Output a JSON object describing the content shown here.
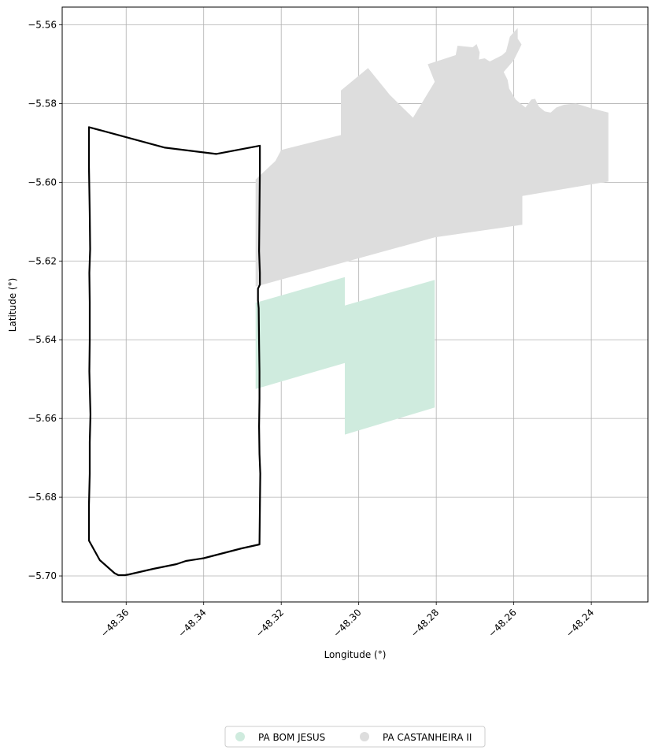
{
  "chart_data": {
    "type": "map",
    "xlabel": "Longitude (°)",
    "ylabel": "Latitude (°)",
    "xlim": [
      -48.3765,
      -48.2254
    ],
    "ylim": [
      -5.7066,
      -5.5555
    ],
    "xticks": [
      -48.36,
      -48.34,
      -48.32,
      -48.3,
      -48.28,
      -48.26,
      -48.24
    ],
    "yticks": [
      -5.56,
      -5.58,
      -5.6,
      -5.62,
      -5.64,
      -5.66,
      -5.68,
      -5.7
    ],
    "xtick_labels": [
      "−48.36",
      "−48.34",
      "−48.32",
      "−48.30",
      "−48.28",
      "−48.26",
      "−48.24"
    ],
    "ytick_labels": [
      "−5.56",
      "−5.58",
      "−5.60",
      "−5.62",
      "−5.64",
      "−5.66",
      "−5.68",
      "−5.70"
    ],
    "grid": true,
    "legend_position": "bottom-center",
    "series": [
      {
        "name": "PA BOM JESUS",
        "kind": "filled-polygon",
        "color": "#cfebde",
        "polygon": [
          [
            -48.3266,
            -5.6306
          ],
          [
            -48.3036,
            -5.6241
          ],
          [
            -48.3036,
            -5.6313
          ],
          [
            -48.2804,
            -5.6248
          ],
          [
            -48.2804,
            -5.6572
          ],
          [
            -48.3036,
            -5.6641
          ],
          [
            -48.3036,
            -5.6459
          ],
          [
            -48.3266,
            -5.6525
          ]
        ]
      },
      {
        "name": "PA CASTANHEIRA II",
        "kind": "filled-polygon",
        "color": "#dddddd",
        "polygon": [
          [
            -48.3266,
            -5.5993
          ],
          [
            -48.3215,
            -5.5946
          ],
          [
            -48.32,
            -5.5918
          ],
          [
            -48.3046,
            -5.588
          ],
          [
            -48.3046,
            -5.5767
          ],
          [
            -48.2976,
            -5.571
          ],
          [
            -48.292,
            -5.5778
          ],
          [
            -48.286,
            -5.5836
          ],
          [
            -48.2804,
            -5.5745
          ],
          [
            -48.2822,
            -5.57
          ],
          [
            -48.275,
            -5.5677
          ],
          [
            -48.2745,
            -5.5653
          ],
          [
            -48.2706,
            -5.5657
          ],
          [
            -48.2696,
            -5.5649
          ],
          [
            -48.2688,
            -5.567
          ],
          [
            -48.269,
            -5.5688
          ],
          [
            -48.2675,
            -5.5685
          ],
          [
            -48.2662,
            -5.5693
          ],
          [
            -48.263,
            -5.5677
          ],
          [
            -48.262,
            -5.5668
          ],
          [
            -48.261,
            -5.563
          ],
          [
            -48.259,
            -5.5608
          ],
          [
            -48.259,
            -5.5635
          ],
          [
            -48.258,
            -5.565
          ],
          [
            -48.26,
            -5.569
          ],
          [
            -48.2626,
            -5.572
          ],
          [
            -48.2616,
            -5.574
          ],
          [
            -48.2612,
            -5.5762
          ],
          [
            -48.2595,
            -5.579
          ],
          [
            -48.257,
            -5.581
          ],
          [
            -48.2555,
            -5.579
          ],
          [
            -48.2545,
            -5.5788
          ],
          [
            -48.2535,
            -5.5808
          ],
          [
            -48.252,
            -5.582
          ],
          [
            -48.2505,
            -5.5823
          ],
          [
            -48.249,
            -5.581
          ],
          [
            -48.247,
            -5.5803
          ],
          [
            -48.244,
            -5.58
          ],
          [
            -48.24,
            -5.5812
          ],
          [
            -48.2356,
            -5.5823
          ],
          [
            -48.2356,
            -5.5998
          ],
          [
            -48.2578,
            -5.6035
          ],
          [
            -48.2578,
            -5.6108
          ],
          [
            -48.2804,
            -5.614
          ],
          [
            -48.3266,
            -5.6265
          ]
        ]
      },
      {
        "name": "",
        "kind": "outline-polygon",
        "color": "#000000",
        "polygon": [
          [
            -48.3696,
            -5.586
          ],
          [
            -48.35,
            -5.5912
          ],
          [
            -48.3368,
            -5.5928
          ],
          [
            -48.3255,
            -5.5907
          ],
          [
            -48.3255,
            -5.597
          ],
          [
            -48.3257,
            -5.6175
          ],
          [
            -48.3255,
            -5.623
          ],
          [
            -48.3255,
            -5.626
          ],
          [
            -48.326,
            -5.627
          ],
          [
            -48.326,
            -5.63
          ],
          [
            -48.3258,
            -5.632
          ],
          [
            -48.3257,
            -5.641
          ],
          [
            -48.3256,
            -5.648
          ],
          [
            -48.3256,
            -5.655
          ],
          [
            -48.3257,
            -5.662
          ],
          [
            -48.3256,
            -5.669
          ],
          [
            -48.3254,
            -5.674
          ],
          [
            -48.3256,
            -5.692
          ],
          [
            -48.3302,
            -5.693
          ],
          [
            -48.34,
            -5.6955
          ],
          [
            -48.3446,
            -5.6962
          ],
          [
            -48.347,
            -5.697
          ],
          [
            -48.353,
            -5.6982
          ],
          [
            -48.3592,
            -5.6996
          ],
          [
            -48.3603,
            -5.6998
          ],
          [
            -48.362,
            -5.6998
          ],
          [
            -48.363,
            -5.6993
          ],
          [
            -48.3668,
            -5.696
          ],
          [
            -48.3696,
            -5.691
          ],
          [
            -48.3696,
            -5.682
          ],
          [
            -48.3694,
            -5.674
          ],
          [
            -48.3694,
            -5.666
          ],
          [
            -48.3692,
            -5.659
          ],
          [
            -48.3693,
            -5.656
          ],
          [
            -48.3695,
            -5.648
          ],
          [
            -48.3694,
            -5.64
          ],
          [
            -48.3694,
            -5.6305
          ],
          [
            -48.3695,
            -5.623
          ],
          [
            -48.3693,
            -5.617
          ],
          [
            -48.3694,
            -5.608
          ],
          [
            -48.3696,
            -5.596
          ]
        ]
      }
    ]
  }
}
